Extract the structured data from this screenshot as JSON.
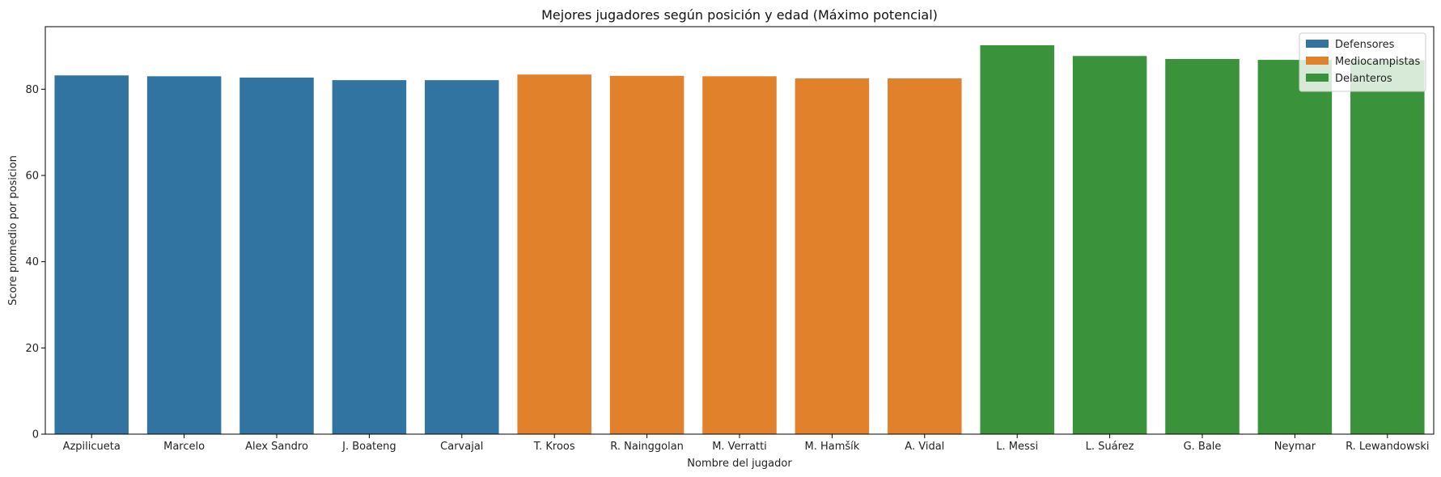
{
  "chart_data": {
    "type": "bar",
    "title": "Mejores jugadores según posición y edad (Máximo potencial)",
    "xlabel": "Nombre del jugador",
    "ylabel": "Score promedio por posicion",
    "ylim": [
      0,
      94.5
    ],
    "yticks": [
      0,
      20,
      40,
      60,
      80
    ],
    "legend_position": "top-right",
    "grid": false,
    "categories": [
      "Azpilicueta",
      "Marcelo",
      "Alex Sandro",
      "J. Boateng",
      "Carvajal",
      "T. Kroos",
      "R. Nainggolan",
      "M. Verratti",
      "M. Hamšík",
      "A. Vidal",
      "L. Messi",
      "L. Suárez",
      "G. Bale",
      "Neymar",
      "R. Lewandowski"
    ],
    "series": [
      {
        "name": "Defensores",
        "color": "#3274a1",
        "values": [
          83.2,
          83.0,
          82.7,
          82.1,
          82.1,
          null,
          null,
          null,
          null,
          null,
          null,
          null,
          null,
          null,
          null
        ]
      },
      {
        "name": "Mediocampistas",
        "color": "#e1812c",
        "values": [
          null,
          null,
          null,
          null,
          null,
          83.4,
          83.1,
          83.0,
          82.5,
          82.5,
          null,
          null,
          null,
          null,
          null
        ]
      },
      {
        "name": "Delanteros",
        "color": "#3a923a",
        "values": [
          null,
          null,
          null,
          null,
          null,
          null,
          null,
          null,
          null,
          null,
          90.2,
          87.7,
          87.0,
          86.8,
          86.7
        ]
      }
    ]
  }
}
